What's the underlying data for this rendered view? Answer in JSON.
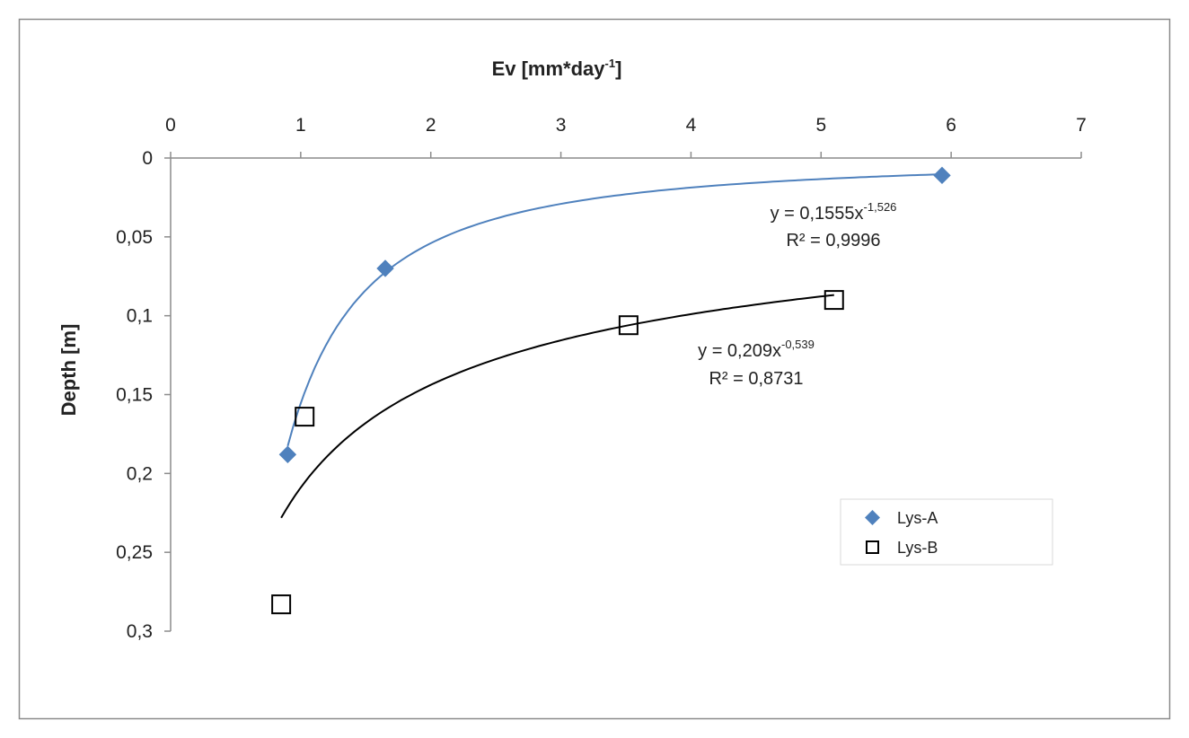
{
  "chart_data": {
    "type": "scatter",
    "xlabel": "Ev [mm*day",
    "xlabel_sup": "-1",
    "xlabel_end": "]",
    "ylabel": "Depth [m]",
    "xlim": [
      0,
      7
    ],
    "ylim": [
      0,
      0.3
    ],
    "y_axis_reversed": true,
    "x_axis_position": "top",
    "x_ticks": [
      0,
      1,
      2,
      3,
      4,
      5,
      6,
      7
    ],
    "x_tick_labels": [
      "0",
      "1",
      "2",
      "3",
      "4",
      "5",
      "6",
      "7"
    ],
    "y_ticks": [
      0,
      0.05,
      0.1,
      0.15,
      0.2,
      0.25,
      0.3
    ],
    "y_tick_labels": [
      "0",
      "0,05",
      "0,1",
      "0,15",
      "0,2",
      "0,25",
      "0,3"
    ],
    "grid": false,
    "legend_position": "bottom-right",
    "series": [
      {
        "name": "Lys-A",
        "marker": "diamond",
        "color": "#4F81BD",
        "points": [
          [
            0.9,
            0.188
          ],
          [
            1.65,
            0.07
          ],
          [
            5.93,
            0.011
          ]
        ],
        "trendline": {
          "type": "power",
          "a": 0.1555,
          "b": -1.526,
          "x_range": [
            0.9,
            5.93
          ],
          "color": "#4F81BD",
          "equation_base": "y = 0,1555x",
          "equation_exp": "-1,526",
          "r2": "R² = 0,9996"
        }
      },
      {
        "name": "Lys-B",
        "marker": "open-square",
        "color": "#000000",
        "points": [
          [
            0.85,
            0.283
          ],
          [
            1.03,
            0.164
          ],
          [
            3.52,
            0.106
          ],
          [
            5.1,
            0.09
          ]
        ],
        "trendline": {
          "type": "power",
          "a": 0.209,
          "b": -0.539,
          "x_range": [
            0.85,
            5.1
          ],
          "color": "#000000",
          "equation_base": "y = 0,209x",
          "equation_exp": "-0,539",
          "r2": "R² = 0,8731"
        }
      }
    ]
  }
}
